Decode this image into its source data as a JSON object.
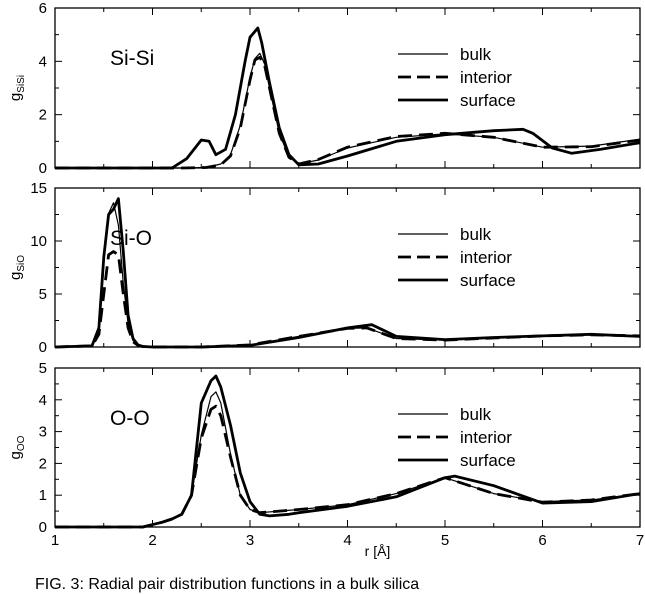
{
  "chart_data": [
    {
      "type": "line",
      "panel_label": "Si-Si",
      "ylabel": "g",
      "ylabel_sub": "SiSi",
      "xlabel": "",
      "xlim": [
        1,
        7
      ],
      "ylim": [
        0,
        6
      ],
      "x_ticks": [
        "1",
        "2",
        "3",
        "4",
        "5",
        "6",
        "7"
      ],
      "y_ticks": [
        0,
        2,
        4,
        6
      ],
      "y_tick_labels": [
        "0",
        "2",
        "4",
        "6"
      ],
      "grid": false,
      "legend": "right",
      "series": [
        {
          "name": "bulk",
          "style": "thin",
          "x": [
            1.0,
            2.3,
            2.55,
            2.7,
            2.8,
            2.9,
            3.0,
            3.05,
            3.1,
            3.15,
            3.2,
            3.3,
            3.4,
            3.5,
            3.7,
            4.0,
            4.5,
            5.0,
            5.5,
            6.0,
            6.5,
            7.0
          ],
          "y": [
            0,
            0,
            0.02,
            0.15,
            0.5,
            1.6,
            3.4,
            4.1,
            4.3,
            3.9,
            3.0,
            1.3,
            0.4,
            0.15,
            0.3,
            0.75,
            1.15,
            1.28,
            1.15,
            0.78,
            0.82,
            1.08
          ]
        },
        {
          "name": "interior",
          "style": "dashed",
          "x": [
            1.0,
            2.3,
            2.55,
            2.7,
            2.8,
            2.9,
            3.0,
            3.05,
            3.1,
            3.15,
            3.2,
            3.3,
            3.4,
            3.5,
            3.7,
            4.0,
            4.5,
            5.0,
            5.5,
            6.0,
            6.5,
            7.0
          ],
          "y": [
            0,
            0,
            0.02,
            0.12,
            0.45,
            1.5,
            3.3,
            4.05,
            4.15,
            3.85,
            3.0,
            1.3,
            0.4,
            0.15,
            0.32,
            0.78,
            1.18,
            1.3,
            1.15,
            0.78,
            0.8,
            1.05
          ]
        },
        {
          "name": "surface",
          "style": "thick",
          "x": [
            1.0,
            2.2,
            2.35,
            2.5,
            2.58,
            2.65,
            2.75,
            2.85,
            2.95,
            3.0,
            3.08,
            3.12,
            3.2,
            3.3,
            3.4,
            3.5,
            3.7,
            4.0,
            4.5,
            5.0,
            5.5,
            5.8,
            5.9,
            6.1,
            6.3,
            6.6,
            7.0
          ],
          "y": [
            0,
            0,
            0.35,
            1.05,
            1.0,
            0.5,
            0.7,
            2.0,
            4.0,
            4.9,
            5.25,
            4.7,
            3.2,
            1.5,
            0.5,
            0.12,
            0.15,
            0.45,
            1.0,
            1.25,
            1.4,
            1.45,
            1.3,
            0.75,
            0.55,
            0.7,
            0.95
          ]
        }
      ],
      "legend_labels": [
        "bulk",
        "interior",
        "surface"
      ]
    },
    {
      "type": "line",
      "panel_label": "Si-O",
      "ylabel": "g",
      "ylabel_sub": "SiO",
      "xlabel": "",
      "xlim": [
        1,
        7
      ],
      "ylim": [
        0,
        15
      ],
      "x_ticks": [
        "1",
        "2",
        "3",
        "4",
        "5",
        "6",
        "7"
      ],
      "y_ticks": [
        0,
        5,
        10,
        15
      ],
      "y_tick_labels": [
        "0",
        "5",
        "10",
        "15"
      ],
      "grid": false,
      "legend": "right",
      "series": [
        {
          "name": "bulk",
          "style": "thin",
          "x": [
            1.0,
            1.38,
            1.45,
            1.5,
            1.55,
            1.6,
            1.65,
            1.7,
            1.75,
            1.8,
            1.85,
            1.9,
            2.0,
            2.5,
            3.0,
            3.5,
            4.0,
            4.2,
            4.5,
            5.0,
            5.5,
            6.0,
            6.5,
            7.0
          ],
          "y": [
            0,
            0.1,
            1.5,
            8.0,
            12.6,
            13.6,
            11.5,
            6.0,
            2.2,
            0.6,
            0.2,
            0.05,
            0,
            0,
            0.2,
            1.0,
            1.75,
            1.8,
            0.8,
            0.65,
            0.85,
            1.05,
            1.15,
            1.05
          ]
        },
        {
          "name": "interior",
          "style": "dashed",
          "x": [
            1.0,
            1.38,
            1.45,
            1.5,
            1.55,
            1.6,
            1.65,
            1.7,
            1.75,
            1.8,
            1.85,
            1.9,
            2.0,
            2.5,
            3.0,
            3.5,
            4.0,
            4.2,
            4.5,
            5.0,
            5.5,
            6.0,
            6.5,
            7.0
          ],
          "y": [
            0,
            0.1,
            1.2,
            5.0,
            8.7,
            9.0,
            8.7,
            5.0,
            1.8,
            0.5,
            0.15,
            0.05,
            0,
            0,
            0.2,
            1.0,
            1.75,
            1.8,
            0.8,
            0.65,
            0.85,
            1.05,
            1.15,
            1.05
          ]
        },
        {
          "name": "surface",
          "style": "thick",
          "x": [
            1.0,
            1.38,
            1.45,
            1.5,
            1.55,
            1.6,
            1.65,
            1.7,
            1.75,
            1.8,
            1.85,
            1.9,
            2.0,
            2.5,
            3.0,
            3.5,
            4.0,
            4.25,
            4.5,
            5.0,
            5.5,
            6.0,
            6.5,
            7.0
          ],
          "y": [
            0,
            0.1,
            1.8,
            8.5,
            12.5,
            13.0,
            14.0,
            9.0,
            3.0,
            0.8,
            0.2,
            0.05,
            0,
            0,
            0.15,
            0.9,
            1.8,
            2.1,
            1.0,
            0.7,
            0.9,
            1.05,
            1.2,
            1.0
          ]
        }
      ],
      "legend_labels": [
        "bulk",
        "interior",
        "surface"
      ]
    },
    {
      "type": "line",
      "panel_label": "O-O",
      "ylabel": "g",
      "ylabel_sub": "OO",
      "xlabel": "r [Å]",
      "xlim": [
        1,
        7
      ],
      "ylim": [
        0,
        5
      ],
      "x_ticks": [
        "1",
        "2",
        "3",
        "4",
        "5",
        "6",
        "7"
      ],
      "y_ticks": [
        0,
        1,
        2,
        3,
        4,
        5
      ],
      "y_tick_labels": [
        "0",
        "1",
        "2",
        "3",
        "4",
        "5"
      ],
      "grid": false,
      "legend": "right",
      "series": [
        {
          "name": "bulk",
          "style": "thin",
          "x": [
            1.0,
            1.9,
            2.1,
            2.2,
            2.3,
            2.4,
            2.5,
            2.6,
            2.65,
            2.7,
            2.8,
            2.9,
            3.0,
            3.1,
            3.3,
            3.5,
            4.0,
            4.5,
            5.0,
            5.5,
            6.0,
            6.5,
            7.0
          ],
          "y": [
            0,
            0,
            0.15,
            0.25,
            0.4,
            1.0,
            2.9,
            4.1,
            4.25,
            3.9,
            2.3,
            1.0,
            0.55,
            0.45,
            0.5,
            0.55,
            0.7,
            1.05,
            1.55,
            1.05,
            0.8,
            0.85,
            1.05
          ]
        },
        {
          "name": "interior",
          "style": "dashed",
          "x": [
            1.0,
            1.9,
            2.1,
            2.2,
            2.3,
            2.4,
            2.5,
            2.6,
            2.65,
            2.7,
            2.8,
            2.9,
            3.0,
            3.1,
            3.3,
            3.5,
            4.0,
            4.5,
            5.0,
            5.5,
            6.0,
            6.5,
            7.0
          ],
          "y": [
            0,
            0,
            0.15,
            0.25,
            0.4,
            1.0,
            2.8,
            3.7,
            3.8,
            3.5,
            2.2,
            1.0,
            0.55,
            0.45,
            0.5,
            0.55,
            0.7,
            1.05,
            1.55,
            1.05,
            0.78,
            0.85,
            1.05
          ]
        },
        {
          "name": "surface",
          "style": "thick",
          "x": [
            1.0,
            1.9,
            2.1,
            2.2,
            2.3,
            2.4,
            2.5,
            2.6,
            2.65,
            2.7,
            2.8,
            2.9,
            3.0,
            3.1,
            3.2,
            3.4,
            3.5,
            4.0,
            4.5,
            5.0,
            5.1,
            5.5,
            6.0,
            6.5,
            7.0
          ],
          "y": [
            0,
            0,
            0.15,
            0.25,
            0.4,
            1.0,
            3.9,
            4.6,
            4.75,
            4.4,
            3.2,
            1.7,
            0.8,
            0.4,
            0.35,
            0.4,
            0.45,
            0.65,
            0.95,
            1.55,
            1.6,
            1.3,
            0.75,
            0.8,
            1.05
          ]
        }
      ],
      "legend_labels": [
        "bulk",
        "interior",
        "surface"
      ]
    }
  ],
  "caption": "FIG. 3:   Radial pair distribution functions in a bulk silica"
}
